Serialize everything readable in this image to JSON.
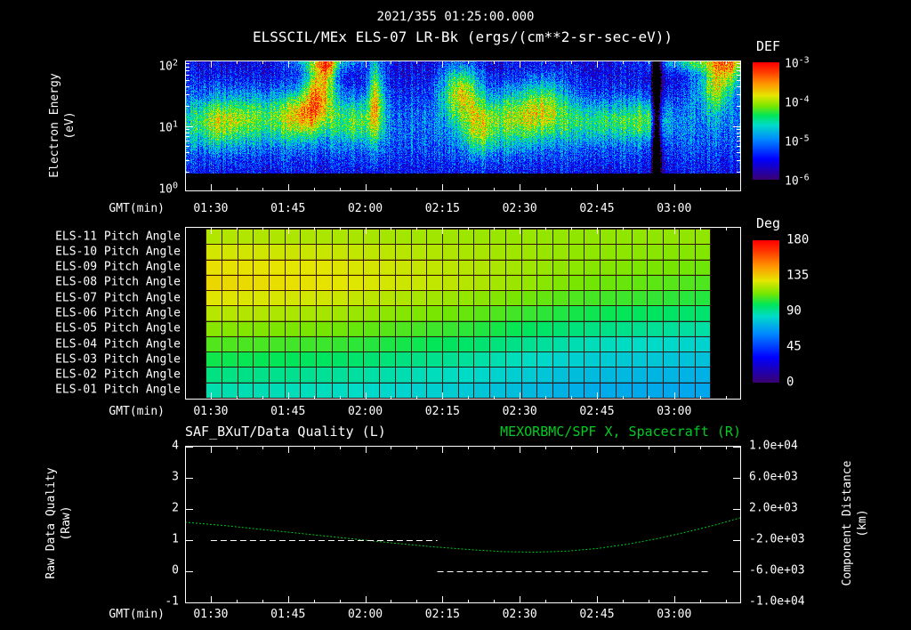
{
  "header": {
    "timestamp": "2021/355 01:25:00.000",
    "title": "ELSSCIL/MEx ELS-07 LR-Bk  (ergs/(cm**2-sr-sec-eV))"
  },
  "colors": {
    "background": "#000000",
    "foreground": "#ffffff",
    "accent_green": "#00cc22"
  },
  "xaxis": {
    "label": "GMT(min)",
    "ticks": [
      "01:30",
      "01:45",
      "02:00",
      "02:15",
      "02:30",
      "02:45",
      "03:00"
    ],
    "start_min": 0,
    "span_min": 108,
    "first_tick_min": 5,
    "major_step_min": 15,
    "minor_step_min": 5
  },
  "spectro_panel": {
    "ylabel_line1": "Electron Energy",
    "ylabel_line2": "(eV)",
    "yticks": [
      {
        "base": "10",
        "exp": "2"
      },
      {
        "base": "10",
        "exp": "1"
      },
      {
        "base": "10",
        "exp": "0"
      }
    ],
    "colorbar": {
      "title": "DEF",
      "ticks": [
        {
          "base": "10",
          "exp": "-3"
        },
        {
          "base": "10",
          "exp": "-4"
        },
        {
          "base": "10",
          "exp": "-5"
        },
        {
          "base": "10",
          "exp": "-6"
        }
      ]
    }
  },
  "pitch_panel": {
    "row_labels": [
      "ELS-11 Pitch Angle",
      "ELS-10 Pitch Angle",
      "ELS-09 Pitch Angle",
      "ELS-08 Pitch Angle",
      "ELS-07 Pitch Angle",
      "ELS-06 Pitch Angle",
      "ELS-05 Pitch Angle",
      "ELS-04 Pitch Angle",
      "ELS-03 Pitch Angle",
      "ELS-02 Pitch Angle",
      "ELS-01 Pitch Angle"
    ],
    "colorbar": {
      "title": "Deg",
      "ticks": [
        "180",
        "135",
        "90",
        "45",
        "0"
      ]
    }
  },
  "bottom_panel": {
    "title_left": "SAF_BXuT/Data Quality (L)",
    "title_right": "MEXORBMC/SPF X, Spacecraft (R)",
    "ylabel_left_line1": "Raw Data Quality",
    "ylabel_left_line2": "(Raw)",
    "ylabel_right_line1": "Component Distance",
    "ylabel_right_line2": "(km)",
    "yticks_left": [
      "4",
      "3",
      "2",
      "1",
      "0",
      "-1"
    ],
    "yticks_right": [
      "1.0e+04",
      "6.0e+03",
      "2.0e+03",
      "-2.0e+03",
      "-6.0e+03",
      "-1.0e+04"
    ]
  },
  "chart_data": [
    {
      "type": "heatmap",
      "name": "electron-energy-spectrogram",
      "title": "ELSSCIL/MEx ELS-07 LR-Bk",
      "units": "ergs/(cm**2-sr-sec-eV)",
      "x_label": "GMT(min)",
      "x_start": "01:25:00",
      "x_end": "03:13:00",
      "t_span_min": 108,
      "y_label": "Electron Energy (eV)",
      "y_scale": "log",
      "y_range_ev": [
        1,
        100
      ],
      "z_label": "DEF",
      "z_scale": "log",
      "z_range": [
        1e-06,
        0.001
      ],
      "background_log10_flux": -5.9,
      "band_center_log10_ev": 1.0,
      "band_sigma_log10_ev": 0.45,
      "band_amp_decades": 0.6,
      "noise_decades": 0.9,
      "features": [
        {
          "t_min": 26,
          "energy_ev": 40,
          "sigma_t": 2.0,
          "sigma_loge": 0.32,
          "amp": 1.8
        },
        {
          "t_min": 27.5,
          "energy_ev": 85,
          "sigma_t": 1.2,
          "sigma_loge": 0.18,
          "amp": 1.2
        },
        {
          "t_min": 23,
          "energy_ev": 15,
          "sigma_t": 3.0,
          "sigma_loge": 0.25,
          "amp": 1.1
        },
        {
          "t_min": 37,
          "energy_ev": 28,
          "sigma_t": 1.1,
          "sigma_loge": 0.45,
          "amp": 1.5
        },
        {
          "t_min": 33,
          "energy_ev": 12,
          "sigma_t": 3.0,
          "sigma_loge": 0.25,
          "amp": 0.9
        },
        {
          "t_min": 14,
          "energy_ev": 14,
          "sigma_t": 8.0,
          "sigma_loge": 0.28,
          "amp": 0.9
        },
        {
          "t_min": 6,
          "energy_ev": 11,
          "sigma_t": 4.0,
          "sigma_loge": 0.25,
          "amp": 0.7
        },
        {
          "t_min": 53.5,
          "energy_ev": 35,
          "sigma_t": 2.6,
          "sigma_loge": 0.3,
          "amp": 1.6
        },
        {
          "t_min": 57,
          "energy_ev": 9,
          "sigma_t": 2.5,
          "sigma_loge": 0.3,
          "amp": 1.0
        },
        {
          "t_min": 65,
          "energy_ev": 14,
          "sigma_t": 5.0,
          "sigma_loge": 0.3,
          "amp": 1.1
        },
        {
          "t_min": 70,
          "energy_ev": 25,
          "sigma_t": 3.0,
          "sigma_loge": 0.3,
          "amp": 0.8
        },
        {
          "t_min": 81,
          "energy_ev": 12,
          "sigma_t": 6.0,
          "sigma_loge": 0.22,
          "amp": 0.8
        },
        {
          "t_min": 90,
          "energy_ev": 13,
          "sigma_t": 3.0,
          "sigma_loge": 0.22,
          "amp": 0.7
        },
        {
          "t_min": 103,
          "energy_ev": 45,
          "sigma_t": 2.5,
          "sigma_loge": 0.3,
          "amp": 1.5
        },
        {
          "t_min": 106,
          "energy_ev": 85,
          "sigma_t": 2.0,
          "sigma_loge": 0.22,
          "amp": 1.2
        },
        {
          "t_min": 100,
          "energy_ev": 95,
          "sigma_t": 7.0,
          "sigma_loge": 0.1,
          "amp": 1.1
        },
        {
          "t_min": 27,
          "energy_ev": 100,
          "sigma_t": 5.0,
          "sigma_loge": 0.1,
          "amp": 1.0
        }
      ],
      "gaps": [
        {
          "t_min": 91.5,
          "width_min": 0.6,
          "depth": 2.5
        }
      ]
    },
    {
      "type": "heatmap",
      "name": "pitch-angle-panel",
      "z_label": "Deg",
      "z_range": [
        0,
        180
      ],
      "t_start_min": 4,
      "t_end_min": 102,
      "n_time_cells": 32,
      "time_nodes_min": [
        4,
        28,
        53,
        77,
        102
      ],
      "series": [
        {
          "name": "ELS-11 Pitch Angle",
          "values": [
            122,
            121,
            119,
            117,
            117
          ]
        },
        {
          "name": "ELS-10 Pitch Angle",
          "values": [
            127,
            125,
            121,
            117,
            115
          ]
        },
        {
          "name": "ELS-09 Pitch Angle",
          "values": [
            131,
            129,
            123,
            116,
            112
          ]
        },
        {
          "name": "ELS-08 Pitch Angle",
          "values": [
            133,
            130,
            123,
            113,
            108
          ]
        },
        {
          "name": "ELS-07 Pitch Angle",
          "values": [
            129,
            126,
            118,
            108,
            103
          ]
        },
        {
          "name": "ELS-06 Pitch Angle",
          "values": [
            123,
            120,
            112,
            101,
            96
          ]
        },
        {
          "name": "ELS-05 Pitch Angle",
          "values": [
            116,
            113,
            105,
            94,
            89
          ]
        },
        {
          "name": "ELS-04 Pitch Angle",
          "values": [
            109,
            106,
            98,
            87,
            82
          ]
        },
        {
          "name": "ELS-03 Pitch Angle",
          "values": [
            101,
            98,
            91,
            81,
            77
          ]
        },
        {
          "name": "ELS-02 Pitch Angle",
          "values": [
            94,
            91,
            85,
            76,
            73
          ]
        },
        {
          "name": "ELS-01 Pitch Angle",
          "values": [
            88,
            86,
            80,
            72,
            70
          ]
        }
      ]
    },
    {
      "type": "line",
      "name": "quality-and-distance",
      "title_left": "SAF_BXuT/Data Quality (L)",
      "title_right": "MEXORBMC/SPF X, Spacecraft (R)",
      "ylim_left": [
        -1,
        4
      ],
      "ylim_right": [
        -10000,
        10000
      ],
      "series": [
        {
          "name": "SAF_BXuT/Data Quality",
          "axis": "left",
          "color": "#ffffff",
          "style": "dashed",
          "segments": [
            {
              "start_min": 5,
              "end_min": 49,
              "value": 1
            },
            {
              "start_min": 49,
              "end_min": 102,
              "value": 0
            }
          ]
        },
        {
          "name": "MEXORBMC/SPF X, Spacecraft",
          "axis": "right",
          "color": "#00cc22",
          "style": "dashed",
          "points_min_km": [
            [
              0,
              300
            ],
            [
              8,
              -150
            ],
            [
              16,
              -700
            ],
            [
              24,
              -1250
            ],
            [
              32,
              -1800
            ],
            [
              40,
              -2350
            ],
            [
              48,
              -2850
            ],
            [
              56,
              -3250
            ],
            [
              62,
              -3480
            ],
            [
              68,
              -3550
            ],
            [
              74,
              -3420
            ],
            [
              80,
              -3080
            ],
            [
              86,
              -2520
            ],
            [
              92,
              -1780
            ],
            [
              98,
              -870
            ],
            [
              103,
              -50
            ],
            [
              108,
              900
            ]
          ]
        }
      ]
    }
  ]
}
